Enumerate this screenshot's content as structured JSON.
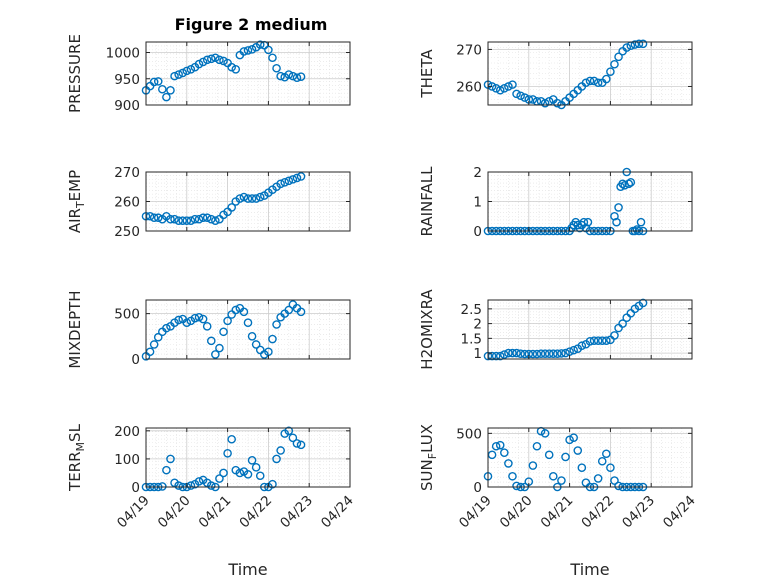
{
  "figure_title": "Figure 2 medium",
  "x_tick_labels": [
    "04/19",
    "04/20",
    "04/21",
    "04/22",
    "04/23",
    "04/24"
  ],
  "x_label": "Time",
  "style": {
    "marker_color": "#0072BD",
    "axis_color": "#262626",
    "grid_color": "#cccccc"
  },
  "chart_data": [
    {
      "type": "scatter",
      "ylabel": "PRESSURE",
      "ylim": [
        900,
        1020
      ],
      "yticks": [
        900,
        950,
        1000
      ],
      "xlim": [
        0,
        5
      ],
      "grid": true,
      "x": [
        0.0,
        0.1,
        0.2,
        0.3,
        0.4,
        0.5,
        0.6,
        0.7,
        0.8,
        0.9,
        1.0,
        1.1,
        1.2,
        1.3,
        1.4,
        1.5,
        1.6,
        1.7,
        1.8,
        1.9,
        2.0,
        2.1,
        2.2,
        2.3,
        2.4,
        2.5,
        2.6,
        2.7,
        2.8,
        2.9,
        3.0,
        3.1,
        3.2,
        3.3,
        3.4,
        3.5,
        3.6,
        3.7,
        3.8
      ],
      "y": [
        928,
        936,
        944,
        945,
        930,
        915,
        928,
        955,
        958,
        961,
        965,
        968,
        972,
        978,
        982,
        986,
        988,
        990,
        986,
        984,
        980,
        972,
        968,
        995,
        1002,
        1004,
        1006,
        1010,
        1015,
        1014,
        1005,
        990,
        970,
        955,
        953,
        958,
        955,
        952,
        954
      ]
    },
    {
      "type": "scatter",
      "ylabel": "THETA",
      "ylim": [
        255,
        272
      ],
      "yticks": [
        260,
        270
      ],
      "xlim": [
        0,
        5
      ],
      "grid": true,
      "x": [
        0.0,
        0.1,
        0.2,
        0.3,
        0.4,
        0.5,
        0.6,
        0.7,
        0.8,
        0.9,
        1.0,
        1.1,
        1.2,
        1.3,
        1.4,
        1.5,
        1.6,
        1.7,
        1.8,
        1.9,
        2.0,
        2.1,
        2.2,
        2.3,
        2.4,
        2.5,
        2.6,
        2.7,
        2.8,
        2.9,
        3.0,
        3.1,
        3.2,
        3.3,
        3.4,
        3.5,
        3.6,
        3.7,
        3.8
      ],
      "y": [
        260.5,
        260,
        259.5,
        259,
        259.5,
        260,
        260.5,
        258,
        257.5,
        257,
        256.5,
        256.5,
        256,
        256,
        255.5,
        256,
        256.5,
        255.5,
        255,
        256,
        257,
        258,
        259,
        260,
        261,
        261.5,
        261.5,
        261,
        261,
        262,
        264,
        266,
        268,
        269.5,
        270.5,
        271,
        271.3,
        271.5,
        271.5
      ]
    },
    {
      "type": "scatter",
      "ylabel": "AIR_TEMP",
      "ylim": [
        250,
        270
      ],
      "yticks": [
        250,
        260,
        270
      ],
      "xlim": [
        0,
        5
      ],
      "grid": true,
      "x": [
        0.0,
        0.1,
        0.2,
        0.3,
        0.4,
        0.5,
        0.6,
        0.7,
        0.8,
        0.9,
        1.0,
        1.1,
        1.2,
        1.3,
        1.4,
        1.5,
        1.6,
        1.7,
        1.8,
        1.9,
        2.0,
        2.1,
        2.2,
        2.3,
        2.4,
        2.5,
        2.6,
        2.7,
        2.8,
        2.9,
        3.0,
        3.1,
        3.2,
        3.3,
        3.4,
        3.5,
        3.6,
        3.7,
        3.8
      ],
      "y": [
        255,
        255,
        254.5,
        254.5,
        254,
        255,
        254,
        254,
        253.5,
        253.5,
        253.5,
        253.5,
        254,
        254,
        254.5,
        254.5,
        254,
        253.5,
        254,
        255.5,
        256.5,
        258,
        260,
        261,
        261.5,
        261,
        261,
        261,
        261.5,
        262,
        263,
        264,
        265,
        266,
        266.5,
        267,
        267.5,
        268,
        268.5
      ]
    },
    {
      "type": "scatter",
      "ylabel": "RAINFALL",
      "ylim": [
        0,
        2
      ],
      "yticks": [
        0,
        1,
        2
      ],
      "xlim": [
        0,
        5
      ],
      "grid": true,
      "x": [
        0.0,
        0.1,
        0.2,
        0.3,
        0.4,
        0.5,
        0.6,
        0.7,
        0.8,
        0.9,
        1.0,
        1.1,
        1.2,
        1.3,
        1.4,
        1.5,
        1.6,
        1.7,
        1.8,
        1.9,
        2.0,
        2.05,
        2.1,
        2.15,
        2.2,
        2.25,
        2.3,
        2.35,
        2.4,
        2.45,
        2.5,
        2.6,
        2.7,
        2.8,
        2.9,
        3.0,
        3.1,
        3.15,
        3.2,
        3.25,
        3.3,
        3.35,
        3.4,
        3.45,
        3.5,
        3.55,
        3.6,
        3.65,
        3.7,
        3.75,
        3.8
      ],
      "y": [
        0,
        0,
        0,
        0,
        0,
        0,
        0,
        0,
        0,
        0,
        0,
        0,
        0,
        0,
        0,
        0,
        0,
        0,
        0,
        0,
        0,
        0.1,
        0.2,
        0.3,
        0.2,
        0.1,
        0.2,
        0.3,
        0.1,
        0.3,
        0,
        0,
        0,
        0,
        0,
        0,
        0.5,
        0.3,
        0.8,
        1.5,
        1.6,
        1.55,
        2.0,
        1.6,
        1.65,
        0,
        0,
        0.05,
        0,
        0.3,
        0
      ]
    },
    {
      "type": "scatter",
      "ylabel": "MIXDEPTH",
      "ylim": [
        0,
        650
      ],
      "yticks": [
        0,
        500
      ],
      "xlim": [
        0,
        5
      ],
      "grid": true,
      "x": [
        0.0,
        0.1,
        0.2,
        0.3,
        0.4,
        0.5,
        0.6,
        0.7,
        0.8,
        0.9,
        1.0,
        1.1,
        1.2,
        1.3,
        1.4,
        1.5,
        1.6,
        1.7,
        1.8,
        1.9,
        2.0,
        2.1,
        2.2,
        2.3,
        2.4,
        2.5,
        2.6,
        2.7,
        2.8,
        2.9,
        3.0,
        3.1,
        3.2,
        3.3,
        3.4,
        3.5,
        3.6,
        3.7,
        3.8
      ],
      "y": [
        30,
        80,
        160,
        240,
        300,
        340,
        360,
        400,
        430,
        440,
        400,
        420,
        450,
        460,
        440,
        360,
        200,
        50,
        120,
        300,
        420,
        490,
        540,
        560,
        520,
        400,
        250,
        160,
        100,
        50,
        80,
        220,
        380,
        460,
        500,
        540,
        600,
        560,
        520
      ]
    },
    {
      "type": "scatter",
      "ylabel": "H2OMIXRA",
      "ylim": [
        0.8,
        2.8
      ],
      "yticks": [
        1,
        1.5,
        2,
        2.5
      ],
      "xlim": [
        0,
        5
      ],
      "grid": true,
      "x": [
        0.0,
        0.1,
        0.2,
        0.3,
        0.4,
        0.5,
        0.6,
        0.7,
        0.8,
        0.9,
        1.0,
        1.1,
        1.2,
        1.3,
        1.4,
        1.5,
        1.6,
        1.7,
        1.8,
        1.9,
        2.0,
        2.1,
        2.2,
        2.3,
        2.4,
        2.5,
        2.6,
        2.7,
        2.8,
        2.9,
        3.0,
        3.1,
        3.2,
        3.3,
        3.4,
        3.5,
        3.6,
        3.7,
        3.8
      ],
      "y": [
        0.9,
        0.9,
        0.9,
        0.9,
        0.95,
        1.0,
        1.0,
        1.0,
        0.98,
        0.97,
        0.97,
        0.97,
        0.97,
        0.98,
        0.98,
        0.98,
        0.98,
        0.98,
        0.99,
        1.0,
        1.05,
        1.1,
        1.15,
        1.25,
        1.3,
        1.4,
        1.42,
        1.42,
        1.42,
        1.42,
        1.45,
        1.6,
        1.85,
        2.0,
        2.2,
        2.35,
        2.5,
        2.6,
        2.7
      ]
    },
    {
      "type": "scatter",
      "ylabel": "TERR_MSL",
      "ylim": [
        0,
        210
      ],
      "yticks": [
        0,
        100,
        200
      ],
      "xlim": [
        0,
        5
      ],
      "grid": true,
      "x": [
        0.0,
        0.1,
        0.2,
        0.3,
        0.4,
        0.5,
        0.6,
        0.7,
        0.8,
        0.9,
        1.0,
        1.1,
        1.2,
        1.3,
        1.4,
        1.5,
        1.6,
        1.7,
        1.8,
        1.9,
        2.0,
        2.1,
        2.2,
        2.3,
        2.4,
        2.5,
        2.6,
        2.7,
        2.8,
        2.9,
        3.0,
        3.1,
        3.2,
        3.3,
        3.4,
        3.5,
        3.6,
        3.7,
        3.8
      ],
      "y": [
        0,
        0,
        0,
        0,
        2,
        60,
        100,
        15,
        5,
        0,
        0,
        5,
        10,
        20,
        25,
        15,
        5,
        0,
        30,
        50,
        120,
        170,
        60,
        50,
        55,
        45,
        95,
        70,
        40,
        0,
        0,
        10,
        100,
        130,
        190,
        200,
        175,
        155,
        150
      ]
    },
    {
      "type": "scatter",
      "ylabel": "SUN_FLUX",
      "ylim": [
        0,
        550
      ],
      "yticks": [
        0,
        500
      ],
      "xlim": [
        0,
        5
      ],
      "grid": true,
      "x": [
        0.0,
        0.1,
        0.2,
        0.3,
        0.4,
        0.5,
        0.6,
        0.7,
        0.8,
        0.9,
        1.0,
        1.1,
        1.2,
        1.3,
        1.4,
        1.5,
        1.6,
        1.7,
        1.8,
        1.9,
        2.0,
        2.1,
        2.2,
        2.3,
        2.4,
        2.5,
        2.6,
        2.7,
        2.8,
        2.9,
        3.0,
        3.1,
        3.2,
        3.3,
        3.4,
        3.5,
        3.6,
        3.7,
        3.8
      ],
      "y": [
        100,
        300,
        380,
        390,
        320,
        220,
        100,
        10,
        0,
        0,
        50,
        200,
        380,
        520,
        500,
        300,
        100,
        0,
        60,
        280,
        440,
        460,
        340,
        180,
        40,
        0,
        0,
        80,
        240,
        310,
        180,
        60,
        10,
        0,
        0,
        0,
        0,
        0,
        0
      ]
    }
  ]
}
